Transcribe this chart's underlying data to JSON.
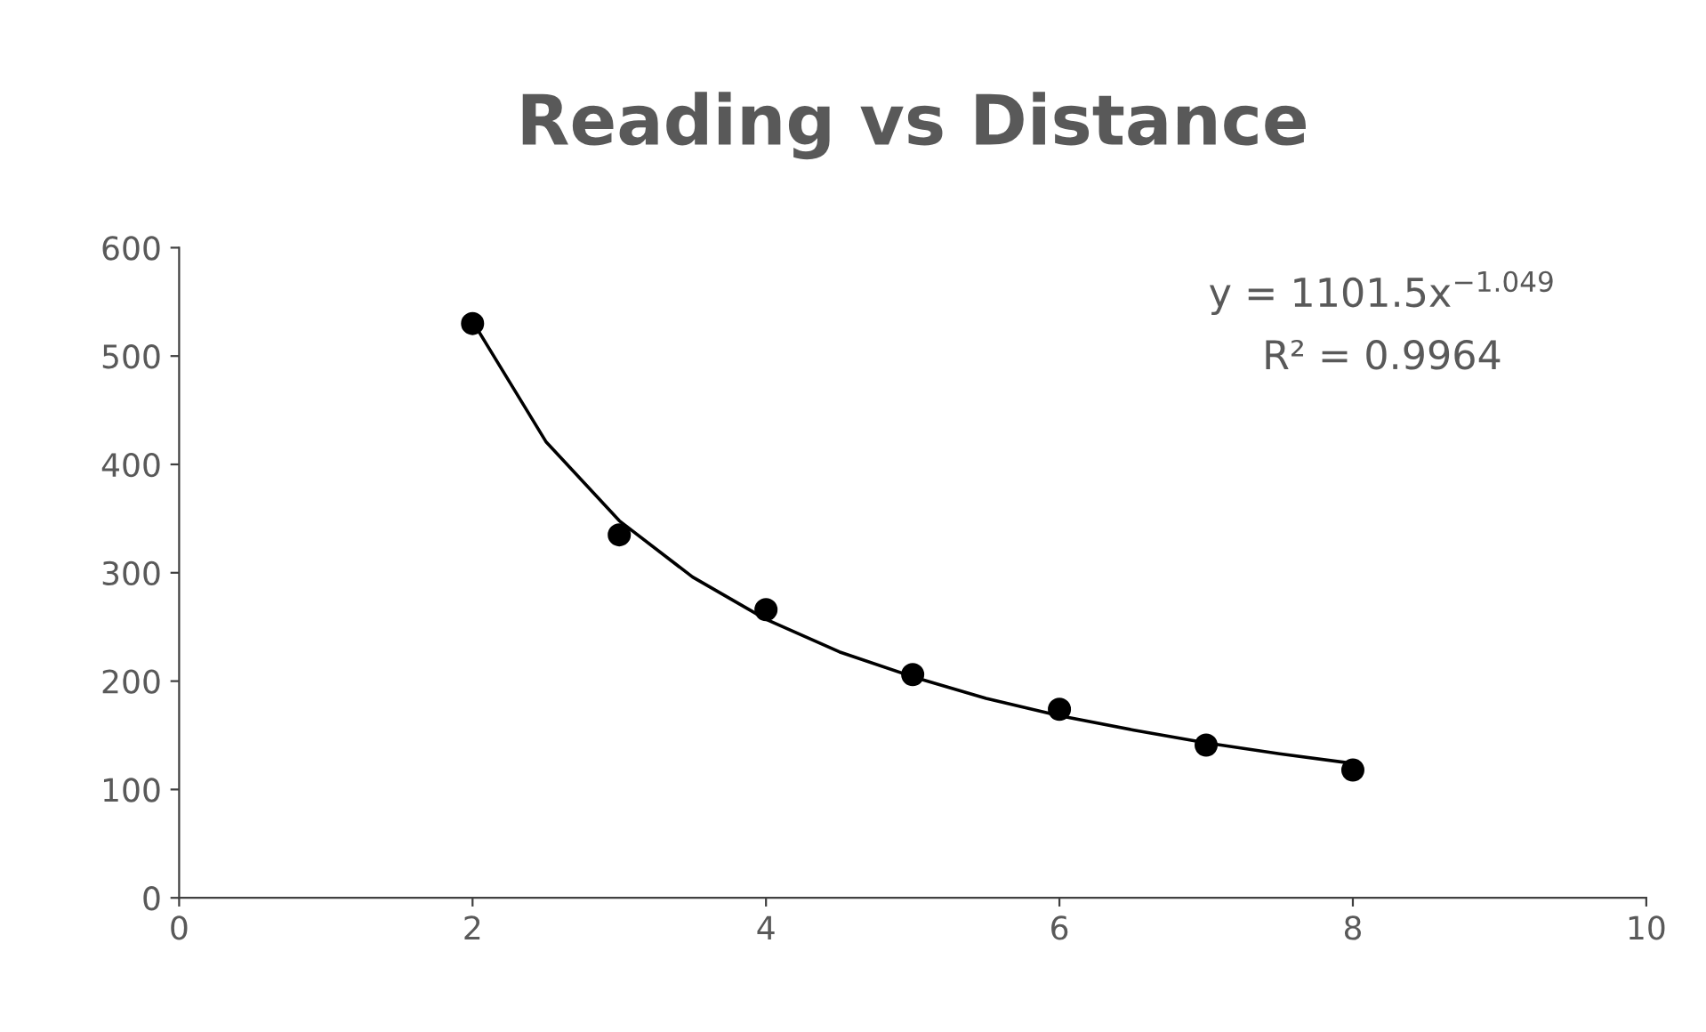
{
  "chart_data": {
    "type": "scatter",
    "title": "Reading vs Distance",
    "series": [
      {
        "color": "#000000",
        "marker": "circle",
        "x": [
          2,
          3,
          4,
          5,
          6,
          7,
          8
        ],
        "values": [
          530,
          335,
          266,
          206,
          174,
          141,
          118
        ]
      },
      {
        "type": "line",
        "color": "#000000",
        "marker": "none",
        "line_style": "solid",
        "x": [
          2,
          2.5,
          3,
          3.5,
          4,
          4.5,
          5,
          5.5,
          6,
          6.5,
          7,
          7.5,
          8
        ],
        "values": [
          532,
          421,
          348,
          296,
          257,
          227,
          204,
          184,
          168,
          155,
          143,
          133,
          124
        ]
      }
    ],
    "xlim": [
      0,
      10
    ],
    "xticks": [
      0,
      2,
      4,
      6,
      8,
      10
    ],
    "ylim": [
      0,
      600
    ],
    "yticks": [
      0,
      100,
      200,
      300,
      400,
      500,
      600
    ],
    "grid": false,
    "legend": false,
    "annotations": [
      "y = 1101.5x$^{−1.049}$",
      "R² = 0.9964"
    ]
  }
}
